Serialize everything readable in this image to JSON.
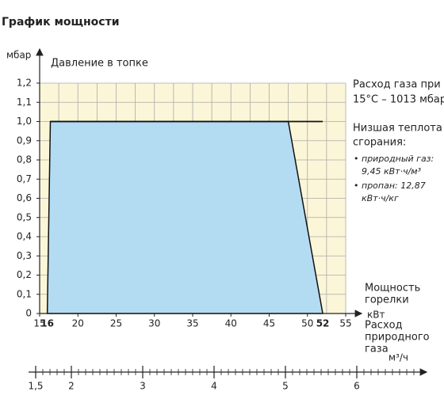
{
  "title": "График мощности",
  "chart_data": {
    "type": "area",
    "y_unit": "мбар",
    "y_label": "Давление в топке",
    "x_label": [
      "Мощность",
      "горелки"
    ],
    "x_unit": "кВт",
    "x2_label": [
      "Расход",
      "природного",
      "газа"
    ],
    "x2_unit": "м³/ч",
    "xlim": [
      15,
      55
    ],
    "xticks": [
      15,
      20,
      25,
      30,
      35,
      40,
      45,
      50,
      55
    ],
    "xticks_bold": [
      16,
      52
    ],
    "xgrid": [
      15,
      17.5,
      20,
      22.5,
      25,
      27.5,
      30,
      32.5,
      35,
      37.5,
      40,
      42.5,
      45,
      47.5,
      50,
      52.5,
      55
    ],
    "ylim": [
      0,
      1.2
    ],
    "yticks": [
      0,
      {
        "value": 0.1,
        "label": "0,1"
      },
      {
        "value": 0.2,
        "label": "0,2"
      },
      {
        "value": 0.3,
        "label": "0,3"
      },
      {
        "value": 0.4,
        "label": "0,4"
      },
      {
        "value": 0.5,
        "label": "0,5"
      },
      {
        "value": 0.6,
        "label": "0,6"
      },
      {
        "value": 0.7,
        "label": "0,7"
      },
      {
        "value": 0.8,
        "label": "0,8"
      },
      {
        "value": 0.9,
        "label": "0,9"
      },
      {
        "value": 1.0,
        "label": "1,0"
      },
      {
        "value": 1.1,
        "label": "1,1"
      },
      {
        "value": 1.2,
        "label": "1,2"
      }
    ],
    "x2lim": [
      1.4,
      6.8
    ],
    "x2ticks": [
      {
        "value": 1.5,
        "label": "1,5"
      },
      2,
      3,
      4,
      5,
      6
    ],
    "x2minor_step": 0.1,
    "grid": true,
    "series": [
      {
        "color": "#b3dcf2",
        "x": [
          16,
          16.4,
          47.5,
          52
        ],
        "values": [
          0,
          1.0,
          1.0,
          0
        ]
      },
      {
        "color": "#111111",
        "x": [
          16.4,
          52
        ],
        "values": [
          1.0,
          1.0
        ]
      }
    ],
    "annotations": {
      "gas_flow": [
        "Расход газа при",
        "15°C – 1013 мбар"
      ],
      "heat": [
        "Низшая теплота",
        "сгорания:"
      ],
      "natural_gas": [
        "природный газ:",
        "9,45 кВт·ч/м³"
      ],
      "propane": [
        "пропан: 12,87",
        "кВт·ч/кг"
      ]
    }
  }
}
